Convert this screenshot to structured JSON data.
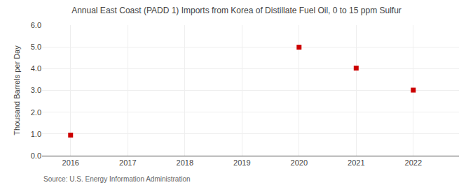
{
  "chart_data": {
    "type": "scatter",
    "title": "Annual East Coast (PADD 1) Imports from Korea of Distillate Fuel Oil, 0 to 15 ppm Sulfur",
    "ylabel": "Thousand Barrels per Day",
    "annotations": [
      "Source: U.S. Energy Information Administration"
    ],
    "x": [
      2016,
      2020,
      2021,
      2022
    ],
    "values": [
      0.946,
      4.986,
      4.027,
      3.014
    ],
    "color": "#cc0000",
    "marker": "square",
    "xlim": [
      2015.5,
      2022.8
    ],
    "xticks": [
      2016,
      2017,
      2018,
      2019,
      2020,
      2021,
      2022
    ],
    "ylim": [
      0.0,
      6.0
    ],
    "yticks": [
      {
        "value": 0,
        "label": "0.0"
      },
      {
        "value": 1,
        "label": "1.0"
      },
      {
        "value": 2,
        "label": "2.0"
      },
      {
        "value": 3,
        "label": "3.0"
      },
      {
        "value": 4,
        "label": "4.0"
      },
      {
        "value": 5,
        "label": "5.0"
      },
      {
        "value": 6,
        "label": "6.0"
      }
    ],
    "grid": true
  }
}
